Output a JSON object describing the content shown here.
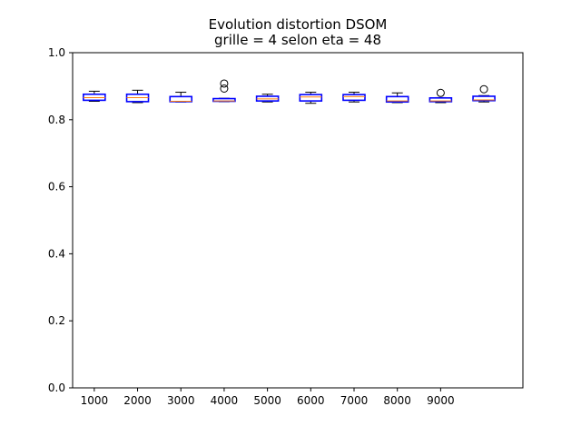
{
  "chart_data": {
    "type": "boxplot",
    "title_line1": "Evolution distortion DSOM",
    "title_line2": "grille = 4 selon eta = 48",
    "xlabel": "",
    "ylabel": "",
    "ylim": [
      0,
      1.0
    ],
    "y_ticks": [
      "0.0",
      "0.2",
      "0.4",
      "0.6",
      "0.8",
      "1.0"
    ],
    "y_tick_values": [
      0,
      0.2,
      0.4,
      0.6,
      0.8,
      1.0
    ],
    "x_tick_labels": [
      "1000",
      "2000",
      "3000",
      "4000",
      "5000",
      "6000",
      "7000",
      "8000",
      "9000"
    ],
    "colors": {
      "box": "#0000ff",
      "median": "#ff7f0e",
      "whisker": "#000000",
      "outlier": "#000000"
    },
    "boxes": [
      {
        "position": 1,
        "whisker_low": 0.855,
        "q1": 0.858,
        "median": 0.866,
        "q3": 0.876,
        "whisker_high": 0.885,
        "outliers": []
      },
      {
        "position": 2,
        "whisker_low": 0.851,
        "q1": 0.854,
        "median": 0.866,
        "q3": 0.876,
        "whisker_high": 0.888,
        "outliers": []
      },
      {
        "position": 3,
        "whisker_low": 0.853,
        "q1": 0.854,
        "median": 0.855,
        "q3": 0.869,
        "whisker_high": 0.882,
        "outliers": []
      },
      {
        "position": 4,
        "whisker_low": 0.854,
        "q1": 0.855,
        "median": 0.856,
        "q3": 0.863,
        "whisker_high": 0.864,
        "outliers": [
          0.893,
          0.908
        ]
      },
      {
        "position": 5,
        "whisker_low": 0.853,
        "q1": 0.856,
        "median": 0.862,
        "q3": 0.87,
        "whisker_high": 0.876,
        "outliers": []
      },
      {
        "position": 6,
        "whisker_low": 0.849,
        "q1": 0.856,
        "median": 0.868,
        "q3": 0.875,
        "whisker_high": 0.882,
        "outliers": []
      },
      {
        "position": 7,
        "whisker_low": 0.853,
        "q1": 0.858,
        "median": 0.869,
        "q3": 0.875,
        "whisker_high": 0.882,
        "outliers": []
      },
      {
        "position": 8,
        "whisker_low": 0.851,
        "q1": 0.853,
        "median": 0.856,
        "q3": 0.869,
        "whisker_high": 0.88,
        "outliers": []
      },
      {
        "position": 9,
        "whisker_low": 0.851,
        "q1": 0.854,
        "median": 0.856,
        "q3": 0.865,
        "whisker_high": 0.866,
        "outliers": [
          0.88
        ]
      },
      {
        "position": 10,
        "whisker_low": 0.853,
        "q1": 0.857,
        "median": 0.859,
        "q3": 0.87,
        "whisker_high": 0.872,
        "outliers": [
          0.891
        ]
      }
    ]
  }
}
